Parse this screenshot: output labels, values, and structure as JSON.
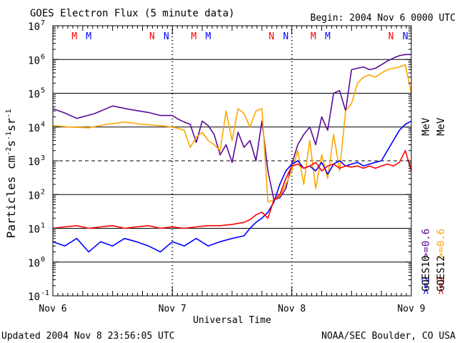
{
  "header": {
    "title": "GOES Electron Flux (5 minute data)",
    "begin": "Begin: 2004 Nov 6 0000 UTC"
  },
  "footer": {
    "updated": "Updated 2004 Nov  8 23:56:05 UTC",
    "credit": "NOAA/SEC Boulder, CO USA"
  },
  "colors": {
    "goes12_ge2": "#ff0000",
    "goes10_ge2": "#0000ff",
    "goes12_ge06": "#ffa500",
    "goes10_ge06": "#5a0a96",
    "m_marker": "#ff0000",
    "n_marker": "#0000ff"
  },
  "chart_data": {
    "type": "line",
    "title": "GOES Electron Flux (5 minute data)",
    "xlabel": "Universal Time",
    "ylabel": "Particles cm-2 s-1 sr-1",
    "yscale": "log",
    "ylim": [
      0.1,
      10000000
    ],
    "xlim": [
      "2004-11-06 00:00",
      "2004-11-09 00:00"
    ],
    "x_tick_labels": [
      "Nov 6",
      "Nov 7",
      "Nov 8",
      "Nov 9"
    ],
    "y_tick_labels": [
      "10^-1",
      "10^0",
      "10^1",
      "10^2",
      "10^3",
      "10^4",
      "10^5",
      "10^6",
      "10^7"
    ],
    "grid": "horizontal solid at each decade, dashed at 10^3",
    "legend": {
      "energy_red": ">=2",
      "energy_blue": ">=2",
      "energy_orange": ">=0.6",
      "energy_purple": ">=0.6",
      "unit": "MeV",
      "sat_a": "GOES10",
      "sat_b": "GOES12"
    },
    "markers": [
      {
        "label": "M",
        "color": "#ff0000",
        "day": 6.18
      },
      {
        "label": "M",
        "color": "#0000ff",
        "day": 6.3
      },
      {
        "label": "N",
        "color": "#ff0000",
        "day": 6.83
      },
      {
        "label": "N",
        "color": "#0000ff",
        "day": 6.95
      },
      {
        "label": "M",
        "color": "#ff0000",
        "day": 7.18
      },
      {
        "label": "M",
        "color": "#0000ff",
        "day": 7.3
      },
      {
        "label": "N",
        "color": "#ff0000",
        "day": 7.83
      },
      {
        "label": "N",
        "color": "#0000ff",
        "day": 7.95
      },
      {
        "label": "M",
        "color": "#ff0000",
        "day": 8.18
      },
      {
        "label": "M",
        "color": "#0000ff",
        "day": 8.3
      },
      {
        "label": "N",
        "color": "#ff0000",
        "day": 8.83
      },
      {
        "label": "N",
        "color": "#0000ff",
        "day": 8.95
      }
    ],
    "series": [
      {
        "legend": "GOES10 >=0.6 MeV",
        "color": "#5a0a96",
        "x": [
          6.0,
          6.1,
          6.2,
          6.35,
          6.5,
          6.65,
          6.8,
          6.9,
          7.0,
          7.05,
          7.1,
          7.15,
          7.2,
          7.25,
          7.3,
          7.35,
          7.4,
          7.45,
          7.5,
          7.55,
          7.6,
          7.65,
          7.7,
          7.75,
          7.8,
          7.85,
          7.9,
          7.95,
          8.0,
          8.05,
          8.1,
          8.15,
          8.2,
          8.25,
          8.3,
          8.35,
          8.4,
          8.45,
          8.5,
          8.55,
          8.6,
          8.65,
          8.7,
          8.75,
          8.8,
          8.85,
          8.9,
          8.95,
          9.0
        ],
        "values": [
          35000,
          26000,
          18000,
          25000,
          42000,
          33000,
          27000,
          22000,
          22000,
          17000,
          14000,
          12000,
          3500,
          15000,
          11000,
          6000,
          1500,
          3000,
          900,
          7000,
          2500,
          4000,
          1000,
          15000,
          500,
          70,
          80,
          150,
          800,
          3000,
          6000,
          10000,
          3000,
          20000,
          8000,
          100000,
          120000,
          30000,
          500000,
          550000,
          600000,
          500000,
          550000,
          700000,
          900000,
          1100000,
          1300000,
          1400000,
          1400000
        ]
      },
      {
        "legend": "GOES12 >=0.6 MeV",
        "color": "#ffa500",
        "x": [
          6.0,
          6.15,
          6.3,
          6.45,
          6.6,
          6.75,
          6.9,
          7.0,
          7.05,
          7.1,
          7.15,
          7.2,
          7.25,
          7.3,
          7.35,
          7.4,
          7.45,
          7.5,
          7.55,
          7.6,
          7.65,
          7.7,
          7.75,
          7.8,
          7.85,
          7.9,
          7.95,
          8.0,
          8.05,
          8.1,
          8.15,
          8.2,
          8.25,
          8.3,
          8.35,
          8.4,
          8.45,
          8.5,
          8.55,
          8.6,
          8.65,
          8.7,
          8.75,
          8.8,
          8.85,
          8.9,
          8.95,
          9.0
        ],
        "values": [
          11000,
          10000,
          9500,
          12000,
          14000,
          12000,
          11000,
          10000,
          9000,
          8000,
          2500,
          5000,
          7000,
          4000,
          3000,
          2000,
          30000,
          4000,
          35000,
          25000,
          10000,
          30000,
          35000,
          60,
          70,
          90,
          200,
          500,
          2000,
          200,
          4000,
          150,
          1500,
          300,
          6000,
          500,
          30000,
          50000,
          200000,
          300000,
          350000,
          300000,
          400000,
          500000,
          550000,
          600000,
          700000,
          100000
        ]
      },
      {
        "legend": "GOES10 >=2 MeV",
        "color": "#0000ff",
        "x": [
          6.0,
          6.1,
          6.2,
          6.3,
          6.4,
          6.5,
          6.6,
          6.7,
          6.8,
          6.9,
          7.0,
          7.1,
          7.2,
          7.3,
          7.4,
          7.5,
          7.6,
          7.65,
          7.7,
          7.75,
          7.8,
          7.85,
          7.9,
          7.95,
          8.0,
          8.05,
          8.1,
          8.15,
          8.2,
          8.25,
          8.3,
          8.35,
          8.4,
          8.45,
          8.5,
          8.55,
          8.6,
          8.65,
          8.7,
          8.75,
          8.8,
          8.85,
          8.9,
          8.95,
          9.0
        ],
        "values": [
          4,
          3,
          5,
          2,
          4,
          3,
          5,
          4,
          3,
          2,
          4,
          3,
          5,
          3,
          4,
          5,
          6,
          10,
          15,
          20,
          30,
          60,
          200,
          500,
          800,
          1000,
          600,
          700,
          500,
          900,
          400,
          800,
          1000,
          700,
          800,
          900,
          700,
          800,
          900,
          1000,
          2000,
          4000,
          8000,
          12000,
          15000
        ]
      },
      {
        "legend": "GOES12 >=2 MeV",
        "color": "#ff0000",
        "x": [
          6.0,
          6.1,
          6.2,
          6.3,
          6.4,
          6.5,
          6.6,
          6.7,
          6.8,
          6.9,
          7.0,
          7.1,
          7.2,
          7.3,
          7.4,
          7.5,
          7.6,
          7.65,
          7.7,
          7.75,
          7.8,
          7.85,
          7.9,
          7.95,
          8.0,
          8.05,
          8.1,
          8.15,
          8.2,
          8.25,
          8.3,
          8.35,
          8.4,
          8.45,
          8.5,
          8.55,
          8.6,
          8.65,
          8.7,
          8.75,
          8.8,
          8.85,
          8.9,
          8.95,
          9.0
        ],
        "values": [
          10,
          11,
          12,
          10,
          11,
          12,
          10,
          11,
          12,
          10,
          11,
          10,
          11,
          12,
          12,
          13,
          15,
          18,
          25,
          30,
          20,
          70,
          100,
          300,
          700,
          800,
          600,
          700,
          900,
          500,
          700,
          800,
          600,
          700,
          650,
          700,
          600,
          700,
          600,
          700,
          800,
          700,
          900,
          2000,
          500
        ]
      }
    ]
  }
}
